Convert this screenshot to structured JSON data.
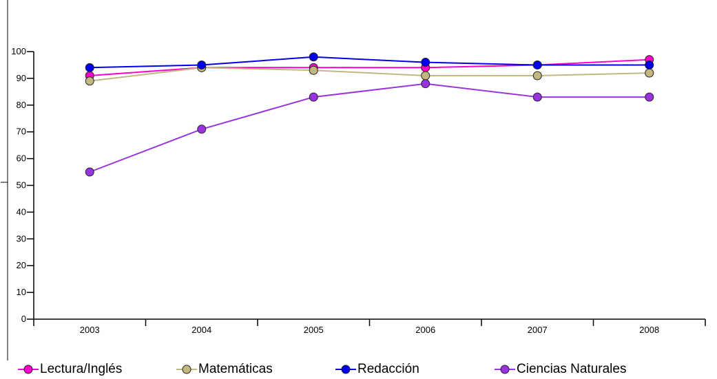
{
  "chart_data": {
    "type": "line",
    "categories": [
      "2003",
      "2004",
      "2005",
      "2006",
      "2007",
      "2008"
    ],
    "ylim": [
      0,
      100
    ],
    "yticks": [
      0,
      10,
      20,
      30,
      40,
      50,
      60,
      70,
      80,
      90,
      100
    ],
    "grid": false,
    "legend_position": "bottom",
    "series": [
      {
        "name": "Lectura/Inglés",
        "color": "#ff00cc",
        "values": [
          91,
          94,
          94,
          94,
          95,
          97
        ]
      },
      {
        "name": "Matemáticas",
        "color": "#c2b780",
        "values": [
          89,
          94,
          93,
          91,
          91,
          92
        ]
      },
      {
        "name": "Redacción",
        "color": "#0000ee",
        "values": [
          94,
          95,
          98,
          96,
          95,
          95
        ]
      },
      {
        "name": "Ciencias Naturales",
        "color": "#9933dd",
        "values": [
          55,
          71,
          83,
          88,
          83,
          83
        ]
      }
    ]
  }
}
